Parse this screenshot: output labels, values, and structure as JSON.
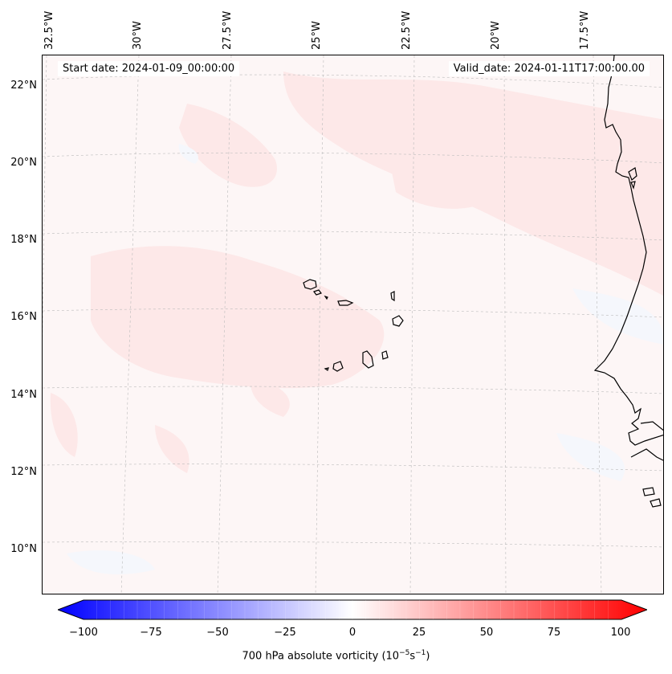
{
  "map": {
    "start_date": "Start date: 2024-01-09_00:00:00",
    "valid_date": "Valid_date: 2024-01-11T17:00:00.00",
    "lon_labels": [
      "32.5°W",
      "30°W",
      "27.5°W",
      "25°W",
      "22.5°W",
      "20°W",
      "17.5°W"
    ],
    "lat_labels": [
      "22°N",
      "20°N",
      "18°N",
      "16°N",
      "14°N",
      "12°N",
      "10°N"
    ],
    "field_colors": {
      "background": "#fdf6f6",
      "positive_weak": "#fde8e8",
      "negative_weak": "#f5f7fc",
      "coastline": "#000000",
      "gridline": "#bbbbbb"
    }
  },
  "colorbar": {
    "label": "700 hPa absolute vorticity (10",
    "label_exp1": "−5",
    "label_mid": "s",
    "label_exp2": "−1",
    "label_end": ")",
    "ticks": [
      "−100",
      "−75",
      "−50",
      "−25",
      "0",
      "25",
      "50",
      "75",
      "100"
    ],
    "min": -100,
    "max": 100,
    "min_color": "#0000ff",
    "mid_color": "#ffffff",
    "max_color": "#ff0000"
  }
}
